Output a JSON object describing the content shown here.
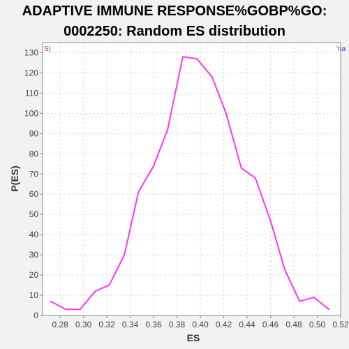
{
  "chart_data": {
    "type": "line",
    "title_line1": "ADAPTIVE IMMUNE RESPONSE%GOBP%GO:",
    "title_line2": "0002250: Random ES distribution",
    "xlabel": "ES",
    "ylabel": "P(ES)",
    "xlim": [
      0.265,
      0.52
    ],
    "ylim": [
      0,
      135
    ],
    "x_ticks": [
      0.28,
      0.3,
      0.32,
      0.34,
      0.36,
      0.38,
      0.4,
      0.42,
      0.44,
      0.46,
      0.48,
      0.5,
      0.52
    ],
    "x_tick_labels": [
      "0.28",
      "0.30",
      "0.32",
      "0.34",
      "0.36",
      "0.38",
      "0.40",
      "0.42",
      "0.44",
      "0.46",
      "0.48",
      "0.50",
      "0.52"
    ],
    "y_ticks": [
      0,
      10,
      20,
      30,
      40,
      50,
      60,
      70,
      80,
      90,
      100,
      110,
      120,
      130
    ],
    "y_tick_labels": [
      "0",
      "10",
      "20",
      "30",
      "40",
      "50",
      "60",
      "70",
      "80",
      "90",
      "100",
      "110",
      "120",
      "130"
    ],
    "grid": true,
    "series": [
      {
        "color": "#ff33ff",
        "x": [
          0.272,
          0.285,
          0.297,
          0.31,
          0.322,
          0.335,
          0.347,
          0.36,
          0.372,
          0.385,
          0.397,
          0.41,
          0.422,
          0.435,
          0.447,
          0.46,
          0.472,
          0.485,
          0.497,
          0.51
        ],
        "y": [
          7,
          3,
          3,
          12,
          15,
          30,
          61,
          74,
          92,
          128,
          127,
          118,
          100,
          73,
          68,
          47,
          23,
          7,
          9,
          3
        ]
      }
    ],
    "corner_left_text": "S)",
    "corner_left_color": "#cc3333",
    "corner_right_text": "'na",
    "corner_right_color": "#3333cc"
  }
}
